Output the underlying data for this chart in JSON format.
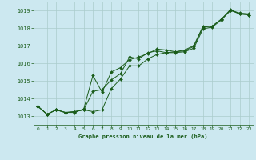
{
  "title": "Graphe pression niveau de la mer (hPa)",
  "bg_color": "#cce8f0",
  "grid_color": "#aacccc",
  "line_color": "#1a5c1a",
  "marker_color": "#1a5c1a",
  "xlim": [
    -0.5,
    23.5
  ],
  "ylim": [
    1012.5,
    1019.5
  ],
  "xticks": [
    0,
    1,
    2,
    3,
    4,
    5,
    6,
    7,
    8,
    9,
    10,
    11,
    12,
    13,
    14,
    15,
    16,
    17,
    18,
    19,
    20,
    21,
    22,
    23
  ],
  "yticks": [
    1013,
    1014,
    1015,
    1016,
    1017,
    1018,
    1019
  ],
  "series1": [
    1013.55,
    1013.1,
    1013.35,
    1013.2,
    1013.2,
    1013.4,
    1015.3,
    1014.35,
    1015.5,
    1015.75,
    1016.2,
    1016.35,
    1016.55,
    1016.8,
    1016.75,
    1016.65,
    1016.75,
    1017.0,
    1018.1,
    1018.1,
    1018.5,
    1019.05,
    1018.8,
    1018.75
  ],
  "series2": [
    1013.55,
    1013.1,
    1013.35,
    1013.2,
    1013.25,
    1013.35,
    1013.25,
    1013.35,
    1014.55,
    1015.1,
    1015.85,
    1015.85,
    1016.25,
    1016.5,
    1016.6,
    1016.6,
    1016.65,
    1016.85,
    1017.95,
    1018.05,
    1018.45,
    1019.0,
    1018.8,
    1018.75
  ],
  "series3": [
    1013.55,
    1013.1,
    1013.35,
    1013.2,
    1013.25,
    1013.35,
    1014.4,
    1014.5,
    1015.05,
    1015.4,
    1016.35,
    1016.25,
    1016.6,
    1016.7,
    1016.6,
    1016.65,
    1016.7,
    1016.95,
    1018.05,
    1018.1,
    1018.5,
    1019.0,
    1018.85,
    1018.8
  ]
}
